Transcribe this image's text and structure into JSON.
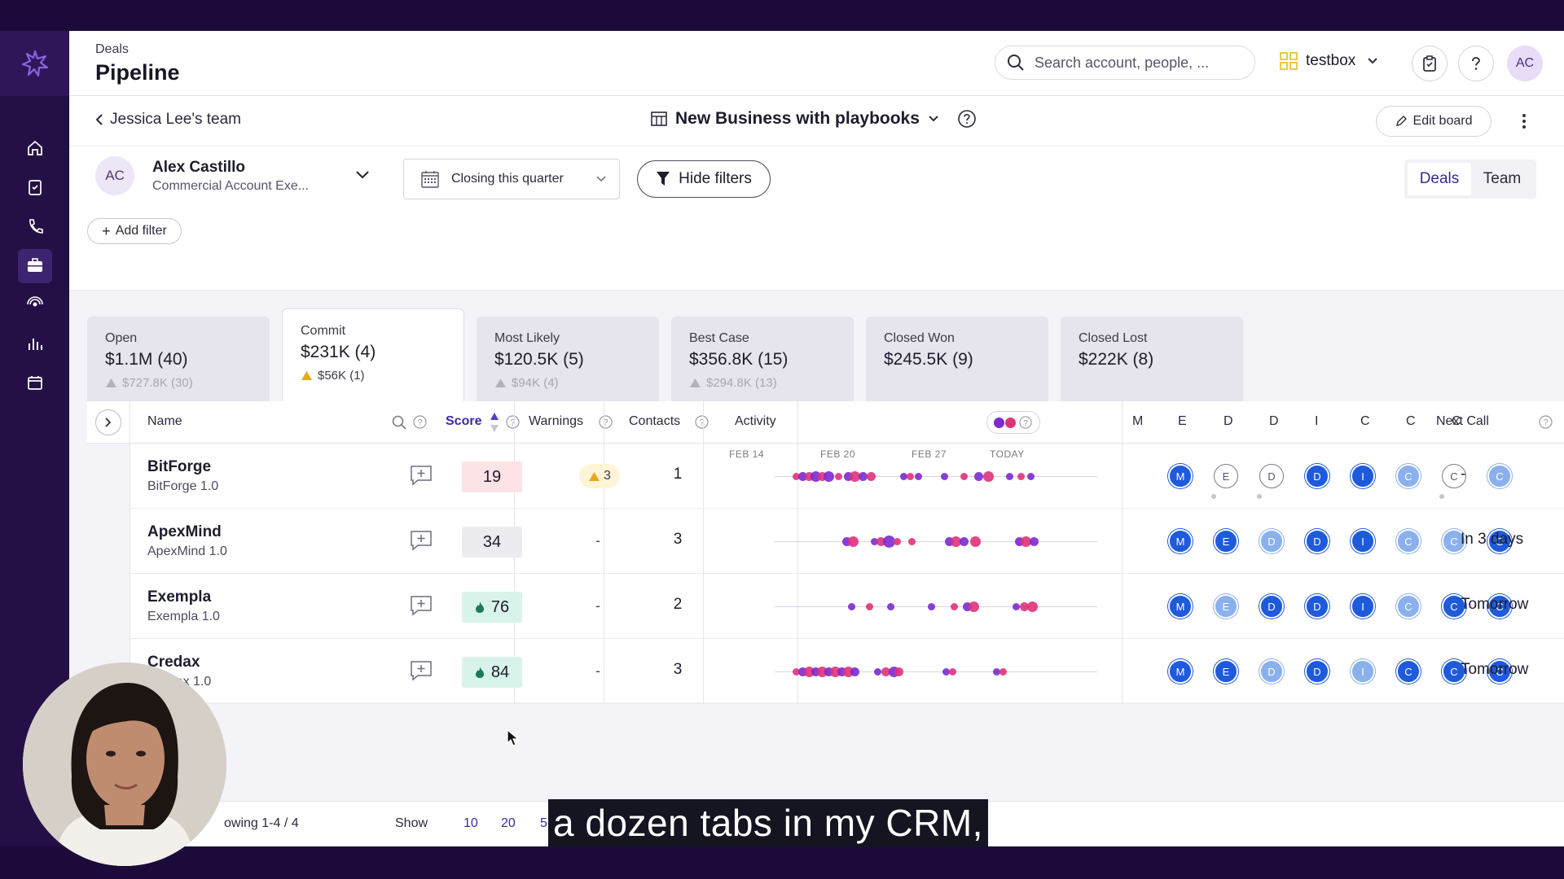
{
  "header": {
    "section": "Deals",
    "title": "Pipeline",
    "search_placeholder": "Search account, people, ...",
    "org_name": "testbox",
    "avatar_initials": "AC"
  },
  "board": {
    "back_label": "Jessica Lee's team",
    "board_name": "New Business with playbooks",
    "edit_label": "Edit board"
  },
  "filters": {
    "person_initials": "AC",
    "person_name": "Alex Castillo",
    "person_role": "Commercial Account Exe...",
    "period": "Closing this quarter",
    "hide_filters": "Hide filters",
    "add_filter": "Add filter",
    "view_deals": "Deals",
    "view_team": "Team"
  },
  "stages": [
    {
      "label": "Open",
      "value": "$1.1M (40)",
      "warning": "$727.8K (30)"
    },
    {
      "label": "Commit",
      "value": "$231K (4)",
      "warning": "$56K (1)"
    },
    {
      "label": "Most Likely",
      "value": "$120.5K (5)",
      "warning": "$94K (4)"
    },
    {
      "label": "Best Case",
      "value": "$356.8K (15)",
      "warning": "$294.8K (13)"
    },
    {
      "label": "Closed Won",
      "value": "$245.5K (9)",
      "warning": ""
    },
    {
      "label": "Closed Lost",
      "value": "$222K (8)",
      "warning": ""
    }
  ],
  "columns": {
    "name": "Name",
    "score": "Score",
    "warnings": "Warnings",
    "contacts": "Contacts",
    "activity": "Activity",
    "meddicc": [
      "M",
      "E",
      "D",
      "D",
      "I",
      "C",
      "C",
      "C"
    ],
    "next_call": "Next Call",
    "activity_dates": [
      "FEB 14",
      "FEB 20",
      "FEB 27",
      "TODAY"
    ]
  },
  "deals": [
    {
      "name": "BitForge",
      "sub": "BitForge 1.0",
      "score": "19",
      "score_level": "low",
      "warnings": "3",
      "contacts": "1",
      "meddicc": [
        "dark:M",
        "empty:E",
        "empty:D",
        "dark:D",
        "dark:I",
        "light:C",
        "empty:C",
        "light:C"
      ],
      "next_call": "-"
    },
    {
      "name": "ApexMind",
      "sub": "ApexMind 1.0",
      "score": "34",
      "score_level": "mid",
      "warnings": "-",
      "contacts": "3",
      "meddicc": [
        "dark:M",
        "dark:E",
        "light:D",
        "dark:D",
        "dark:I",
        "light:C",
        "light:C",
        "dark:C"
      ],
      "next_call": "In 3 days"
    },
    {
      "name": "Exempla",
      "sub": "Exempla 1.0",
      "score": "76",
      "score_level": "high",
      "warnings": "-",
      "contacts": "2",
      "meddicc": [
        "dark:M",
        "light:E",
        "dark:D",
        "dark:D",
        "dark:I",
        "light:C",
        "dark:C",
        "dark:C"
      ],
      "next_call": "Tomorrow"
    },
    {
      "name": "Credax",
      "sub": "Credax 1.0",
      "score": "84",
      "score_level": "high",
      "warnings": "-",
      "contacts": "3",
      "meddicc": [
        "dark:M",
        "dark:E",
        "light:D",
        "dark:D",
        "light:I",
        "dark:C",
        "dark:C",
        "dark:C"
      ],
      "next_call": "Tomorrow"
    }
  ],
  "footer": {
    "showing": "owing  1-4 / 4",
    "show_label": "Show",
    "page_sizes": [
      "10",
      "20",
      "5"
    ]
  },
  "caption": "a dozen tabs in my CRM,",
  "colors": {
    "brand_dark": "#241046",
    "accent": "#3b2aa8",
    "score_low": "#fde2e6",
    "score_mid": "#ecebef",
    "score_high": "#d8f3ea",
    "meddicc_dark": "#1e5adc",
    "meddicc_light": "#8ab0ee",
    "activity_pink": "#e0327a",
    "activity_purple": "#7a2ad0"
  }
}
